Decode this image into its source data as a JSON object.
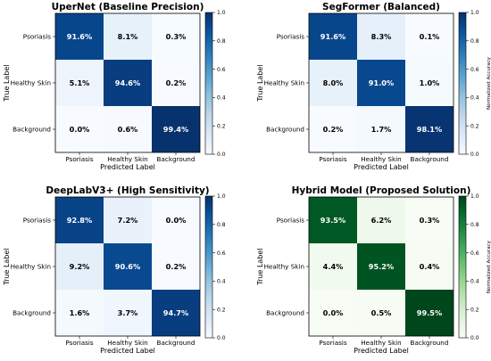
{
  "chart_data": [
    {
      "type": "heatmap",
      "title": "UperNet (Baseline Precision)",
      "xlabel": "Predicted Label",
      "ylabel": "True Label",
      "x_categories": [
        "Psoriasis",
        "Healthy Skin",
        "Background"
      ],
      "y_categories": [
        "Psoriasis",
        "Healthy Skin",
        "Background"
      ],
      "values": [
        [
          91.6,
          8.1,
          0.3
        ],
        [
          5.1,
          94.6,
          0.2
        ],
        [
          0.0,
          0.6,
          99.4
        ]
      ],
      "colormap": "Blues",
      "colorbar": {
        "label": "",
        "ticks": [
          "0.0",
          "0.2",
          "0.4",
          "0.6",
          "0.8",
          "1.0"
        ],
        "range": [
          0,
          1
        ]
      }
    },
    {
      "type": "heatmap",
      "title": "SegFormer (Balanced)",
      "xlabel": "Predicted Label",
      "ylabel": "True Label",
      "x_categories": [
        "Psoriasis",
        "Healthy Skin",
        "Background"
      ],
      "y_categories": [
        "Psoriasis",
        "Healthy Skin",
        "Background"
      ],
      "values": [
        [
          91.6,
          8.3,
          0.1
        ],
        [
          8.0,
          91.0,
          1.0
        ],
        [
          0.2,
          1.7,
          98.1
        ]
      ],
      "colormap": "Blues",
      "colorbar": {
        "label": "Normalized Accuracy",
        "ticks": [
          "0.0",
          "0.2",
          "0.4",
          "0.6",
          "0.8",
          "1.0"
        ],
        "range": [
          0,
          1
        ]
      }
    },
    {
      "type": "heatmap",
      "title": "DeepLabV3+ (High Sensitivity)",
      "xlabel": "Predicted Label",
      "ylabel": "True Label",
      "x_categories": [
        "Psoriasis",
        "Healthy Skin",
        "Background"
      ],
      "y_categories": [
        "Psoriasis",
        "Healthy Skin",
        "Background"
      ],
      "values": [
        [
          92.8,
          7.2,
          0.0
        ],
        [
          9.2,
          90.6,
          0.2
        ],
        [
          1.6,
          3.7,
          94.7
        ]
      ],
      "colormap": "Blues",
      "colorbar": {
        "label": "",
        "ticks": [
          "0.0",
          "0.2",
          "0.4",
          "0.6",
          "0.8",
          "1.0"
        ],
        "range": [
          0,
          1
        ]
      }
    },
    {
      "type": "heatmap",
      "title": "Hybrid Model (Proposed Solution)",
      "xlabel": "Predicted Label",
      "ylabel": "True Label",
      "x_categories": [
        "Psoriasis",
        "Healthy Skin",
        "Background"
      ],
      "y_categories": [
        "Psoriasis",
        "Healthy Skin",
        "Background"
      ],
      "values": [
        [
          93.5,
          6.2,
          0.3
        ],
        [
          4.4,
          95.2,
          0.4
        ],
        [
          0.0,
          0.5,
          99.5
        ]
      ],
      "colormap": "Greens",
      "colorbar": {
        "label": "Normalized Accuracy",
        "ticks": [
          "0.0",
          "0.2",
          "0.4",
          "0.6",
          "0.8",
          "1.0"
        ],
        "range": [
          0,
          1
        ]
      }
    }
  ]
}
